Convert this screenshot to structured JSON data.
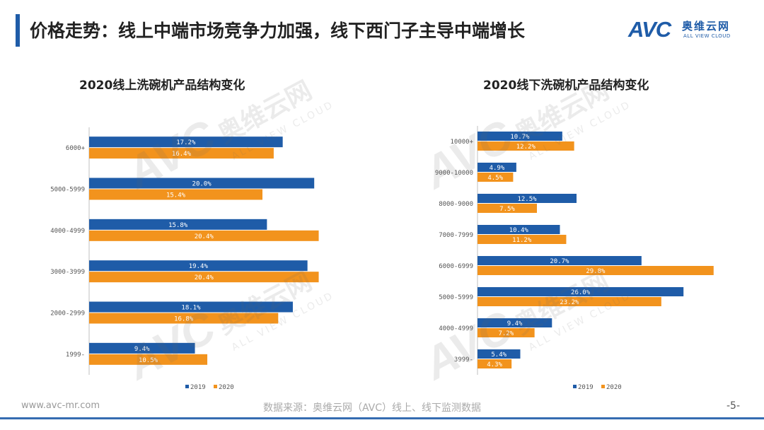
{
  "header": {
    "title": "价格走势：线上中端市场竞争力加强，线下西门子主导中端增长",
    "logo_mark": "AVC",
    "logo_cn": "奥维云网",
    "logo_en": "ALL VIEW CLOUD"
  },
  "watermark": {
    "mark": "AVC",
    "cn": "奥维云网",
    "en": "ALL VIEW CLOUD"
  },
  "chart_data": [
    {
      "type": "bar",
      "orientation": "horizontal",
      "title": "2020线上洗碗机产品结构变化",
      "categories": [
        "6000+",
        "5000-5999",
        "4000-4999",
        "3000-3999",
        "2000-2999",
        "1999-"
      ],
      "series": [
        {
          "name": "2019",
          "color": "#1f5ca8",
          "values": [
            17.2,
            20.0,
            15.8,
            19.4,
            18.1,
            9.4
          ]
        },
        {
          "name": "2020",
          "color": "#f2931d",
          "values": [
            16.4,
            15.4,
            20.4,
            20.4,
            16.8,
            10.5
          ]
        }
      ],
      "value_suffix": "%",
      "xlim": [
        0,
        22
      ]
    },
    {
      "type": "bar",
      "orientation": "horizontal",
      "title": "2020线下洗碗机产品结构变化",
      "categories": [
        "10000+",
        "9000-10000",
        "8000-9000",
        "7000-7999",
        "6000-6999",
        "5000-5999",
        "4000-4999",
        "3999-"
      ],
      "series": [
        {
          "name": "2019",
          "color": "#1f5ca8",
          "values": [
            10.7,
            4.9,
            12.5,
            10.4,
            20.7,
            26.0,
            9.4,
            5.4
          ]
        },
        {
          "name": "2020",
          "color": "#f2931d",
          "values": [
            12.2,
            4.5,
            7.5,
            11.2,
            29.8,
            23.2,
            7.2,
            4.3
          ]
        }
      ],
      "value_suffix": "%",
      "xlim": [
        0,
        30
      ]
    }
  ],
  "footer": {
    "url": "www.avc-mr.com",
    "source": "数据来源：奥维云网（AVC）线上、线下监测数据",
    "page": "-5-"
  }
}
